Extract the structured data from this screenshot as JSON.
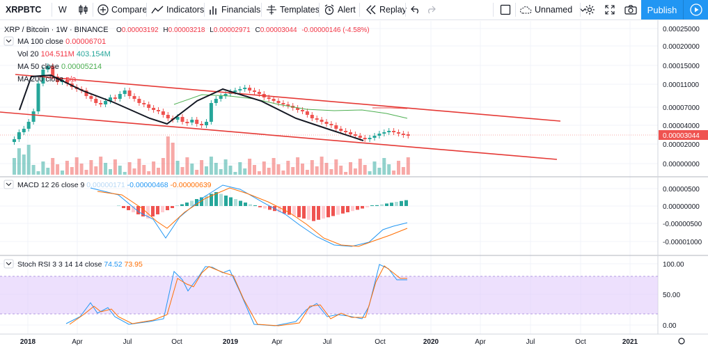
{
  "toolbar": {
    "symbol": "XRPBTC",
    "interval": "W",
    "compare": "Compare",
    "indicators": "Indicators",
    "financials": "Financials",
    "templates": "Templates",
    "alert": "Alert",
    "replay": "Replay",
    "layout_name": "Unnamed",
    "publish": "Publish",
    "icons": [
      "bar-style-icon",
      "plus-circle-icon",
      "indicators-icon",
      "financials-icon",
      "templates-icon",
      "alert-icon",
      "replay-icon",
      "undo-icon",
      "redo-icon",
      "fullscreen-square-icon",
      "cloud-icon",
      "chevron-down-icon",
      "gear-icon",
      "expand-icon",
      "camera-icon",
      "play-icon"
    ]
  },
  "legend": {
    "title": "XRP / Bitcoin",
    "interval": "1W",
    "exchange": "BINANCE",
    "o_label": "O",
    "o_value": "0.00003192",
    "h_label": "H",
    "h_value": "0.00003218",
    "l_label": "L",
    "l_value": "0.00002971",
    "c_label": "C",
    "c_value": "0.00003044",
    "change": "-0.00000146 (-4.58%)",
    "studies": [
      {
        "name": "MA 100 close",
        "value": "0.00006701",
        "value_color": "#f23645"
      },
      {
        "name": "Vol 20",
        "value": "104.511M",
        "value2": "403.154M",
        "value_color": "#f23645"
      },
      {
        "name": "MA 50 close",
        "value": "0.00005214",
        "value_color": "#4caf50"
      },
      {
        "name": "MA 200 close",
        "value": "n/a",
        "value_color": "#f23645"
      }
    ],
    "macd": {
      "name": "MACD 12 26 close 9",
      "v1": "0.00000171",
      "v2": "-0.00000468",
      "v3": "-0.00000639"
    },
    "stoch": {
      "name": "Stoch RSI 3 3 14 14 close",
      "v1": "74.52",
      "v2": "73.95"
    }
  },
  "price_axis": [
    "0.00025000",
    "0.00020000",
    "0.00015000",
    "0.00011000",
    "0.00007000",
    "0.00004000",
    "0.00002000",
    "0.00000000"
  ],
  "last_price_label": "0.00003044",
  "macd_axis": [
    "0.00000500",
    "0.00000000",
    "-0.00000500",
    "-0.00001000"
  ],
  "stoch_axis": [
    "100.00",
    "50.00",
    "0.00"
  ],
  "time_axis": [
    "2018",
    "Apr",
    "Jul",
    "Oct",
    "2019",
    "Apr",
    "Jul",
    "Oct",
    "2020",
    "Apr",
    "Jul",
    "Oct",
    "2021"
  ],
  "colors": {
    "up": "#26a69a",
    "down": "#ef5350",
    "channel": "#e53935",
    "trend": "#131722",
    "ma50": "#4caf50",
    "ma100": "#ef5350",
    "macd": "#2196f3",
    "signal": "#ff6d00",
    "stoch_k": "#2196f3",
    "stoch_d": "#ff6d00",
    "stoch_band": "#e1ccfc",
    "accent": "#2196f3"
  },
  "chart_data": {
    "type": "candlestick",
    "symbol": "XRP / Bitcoin",
    "interval": "1W",
    "exchange": "BINANCE",
    "x_range": [
      "2017-12",
      "2019-11"
    ],
    "y_ticks": [
      0.0,
      2e-05,
      4e-05,
      7e-05,
      0.00011,
      0.00015,
      0.0002,
      0.00025
    ],
    "last_close": 3.044e-05,
    "ohlc_last": {
      "open": 3.192e-05,
      "high": 3.218e-05,
      "low": 2.971e-05,
      "close": 3.044e-05
    },
    "trend_points": [
      {
        "date": "2017-12",
        "value": 5.5e-05
      },
      {
        "date": "2018-01",
        "value": 0.00011
      },
      {
        "date": "2018-03",
        "value": 0.000105
      },
      {
        "date": "2018-05",
        "value": 8.5e-05
      },
      {
        "date": "2018-06",
        "value": 6e-05
      },
      {
        "date": "2018-09",
        "value": 4e-05
      },
      {
        "date": "2018-10",
        "value": 7e-05
      },
      {
        "date": "2018-12",
        "value": 0.000102
      },
      {
        "date": "2019-03",
        "value": 8.5e-05
      },
      {
        "date": "2019-05",
        "value": 5.2e-05
      },
      {
        "date": "2019-06",
        "value": 3.5e-05
      },
      {
        "date": "2019-08",
        "value": 2.8e-05
      },
      {
        "date": "2019-09",
        "value": 3.2e-05
      },
      {
        "date": "2019-10",
        "value": 3.6e-05
      },
      {
        "date": "2019-11",
        "value": 3.044e-05
      }
    ],
    "grid": true,
    "legend": "top-left"
  }
}
